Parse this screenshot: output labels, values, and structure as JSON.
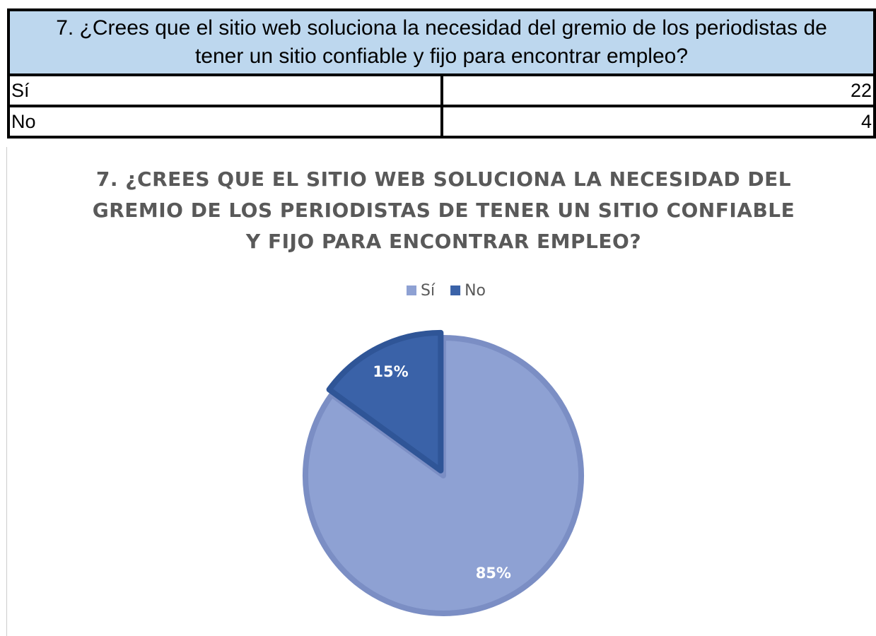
{
  "table": {
    "title": "7. ¿Crees que el sitio web soluciona la necesidad del gremio de los periodistas de tener un sitio confiable y fijo para encontrar empleo?",
    "rows": [
      [
        "Sí",
        "22"
      ],
      [
        "No",
        "4"
      ]
    ]
  },
  "chart_data": {
    "type": "pie",
    "title": "7. ¿CREES QUE EL SITIO WEB SOLUCIONA LA NECESIDAD DEL GREMIO DE LOS PERIODISTAS DE TENER UN SITIO CONFIABLE Y FIJO PARA ENCONTRAR EMPLEO?",
    "categories": [
      "Sí",
      "No"
    ],
    "values": [
      85,
      15
    ],
    "value_labels": [
      "85%",
      "15%"
    ],
    "colors": [
      "#8ea1d3",
      "#3a62a8"
    ],
    "legend": "top"
  }
}
